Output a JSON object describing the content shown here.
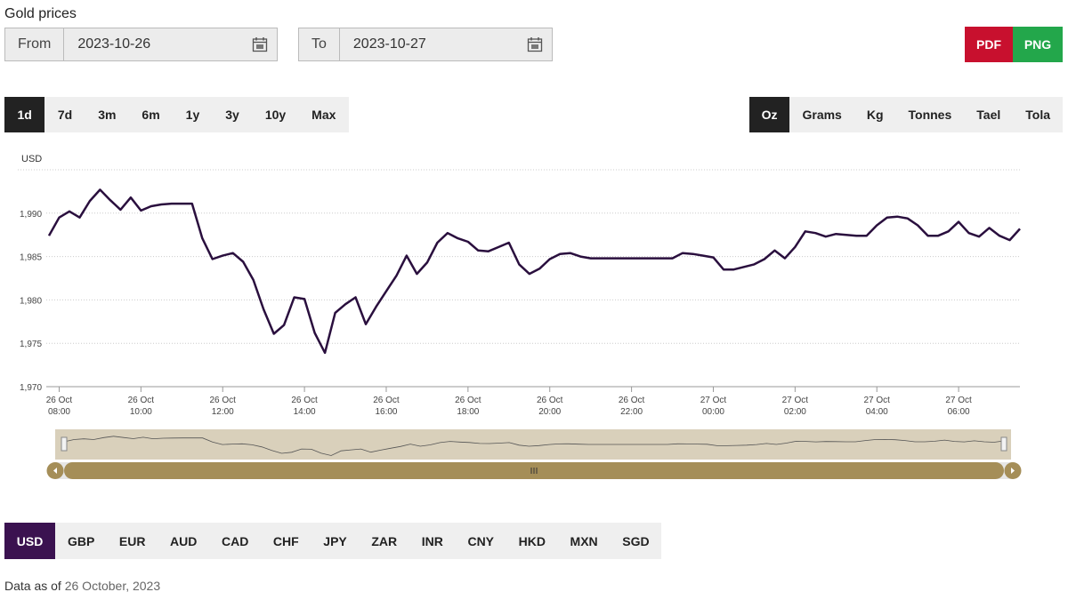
{
  "header": {
    "title": "Gold prices"
  },
  "date_range": {
    "from": {
      "label": "From",
      "value": "2023-10-26"
    },
    "to": {
      "label": "To",
      "value": "2023-10-27"
    }
  },
  "export": [
    "PDF",
    "PNG"
  ],
  "periods": {
    "options": [
      "1d",
      "7d",
      "3m",
      "6m",
      "1y",
      "3y",
      "10y",
      "Max"
    ],
    "selected": "1d"
  },
  "units": {
    "options": [
      "Oz",
      "Grams",
      "Kg",
      "Tonnes",
      "Tael",
      "Tola"
    ],
    "selected": "Oz"
  },
  "chart_data": {
    "type": "line",
    "y_axis_label": "USD",
    "color": "#2a0f3e",
    "x": [
      "26 Oct 07:45",
      "26 Oct 08:00",
      "26 Oct 08:15",
      "26 Oct 08:30",
      "26 Oct 08:45",
      "26 Oct 09:00",
      "26 Oct 09:15",
      "26 Oct 09:30",
      "26 Oct 09:45",
      "26 Oct 10:00",
      "26 Oct 10:15",
      "26 Oct 10:30",
      "26 Oct 10:45",
      "26 Oct 11:00",
      "26 Oct 11:15",
      "26 Oct 11:30",
      "26 Oct 11:45",
      "26 Oct 12:00",
      "26 Oct 12:15",
      "26 Oct 12:30",
      "26 Oct 12:45",
      "26 Oct 13:00",
      "26 Oct 13:15",
      "26 Oct 13:30",
      "26 Oct 13:45",
      "26 Oct 14:00",
      "26 Oct 14:15",
      "26 Oct 14:30",
      "26 Oct 14:45",
      "26 Oct 15:00",
      "26 Oct 15:15",
      "26 Oct 15:30",
      "26 Oct 15:45",
      "26 Oct 16:00",
      "26 Oct 16:15",
      "26 Oct 16:30",
      "26 Oct 16:45",
      "26 Oct 17:00",
      "26 Oct 17:15",
      "26 Oct 17:30",
      "26 Oct 17:45",
      "26 Oct 18:00",
      "26 Oct 18:15",
      "26 Oct 18:30",
      "26 Oct 18:45",
      "26 Oct 19:00",
      "26 Oct 19:15",
      "26 Oct 19:30",
      "26 Oct 19:45",
      "26 Oct 20:00",
      "26 Oct 20:15",
      "26 Oct 20:30",
      "26 Oct 20:45",
      "26 Oct 21:00",
      "26 Oct 21:15",
      "26 Oct 21:30",
      "26 Oct 21:45",
      "26 Oct 22:00",
      "26 Oct 22:15",
      "26 Oct 22:30",
      "26 Oct 22:45",
      "26 Oct 23:00",
      "26 Oct 23:15",
      "26 Oct 23:30",
      "26 Oct 23:45",
      "27 Oct 00:00",
      "27 Oct 00:15",
      "27 Oct 00:30",
      "27 Oct 00:45",
      "27 Oct 01:00",
      "27 Oct 01:15",
      "27 Oct 01:30",
      "27 Oct 01:45",
      "27 Oct 02:00",
      "27 Oct 02:15",
      "27 Oct 02:30",
      "27 Oct 02:45",
      "27 Oct 03:00",
      "27 Oct 03:15",
      "27 Oct 03:30",
      "27 Oct 03:45",
      "27 Oct 04:00",
      "27 Oct 04:15",
      "27 Oct 04:30",
      "27 Oct 04:45",
      "27 Oct 05:00",
      "27 Oct 05:15",
      "27 Oct 05:30",
      "27 Oct 05:45",
      "27 Oct 06:00",
      "27 Oct 06:15",
      "27 Oct 06:30",
      "27 Oct 06:45",
      "27 Oct 07:00",
      "27 Oct 07:15",
      "27 Oct 07:30"
    ],
    "values": [
      1987.4,
      1989.5,
      1990.2,
      1989.5,
      1991.4,
      1992.7,
      1991.5,
      1990.4,
      1991.8,
      1990.3,
      1990.8,
      1991.0,
      1991.1,
      1991.1,
      1991.1,
      1987.1,
      1984.7,
      1985.1,
      1985.4,
      1984.4,
      1982.3,
      1978.9,
      1976.1,
      1977.1,
      1980.3,
      1980.1,
      1976.2,
      1973.9,
      1978.5,
      1979.5,
      1980.3,
      1977.2,
      1979.2,
      1981.0,
      1982.8,
      1985.1,
      1983.0,
      1984.3,
      1986.6,
      1987.7,
      1987.1,
      1986.7,
      1985.7,
      1985.6,
      1986.1,
      1986.6,
      1984.1,
      1983.0,
      1983.6,
      1984.7,
      1985.3,
      1985.4,
      1985.0,
      1984.8,
      1984.8,
      1984.8,
      1984.8,
      1984.8,
      1984.8,
      1984.8,
      1984.8,
      1984.8,
      1985.4,
      1985.3,
      1985.1,
      1984.9,
      1983.5,
      1983.5,
      1983.8,
      1984.1,
      1984.7,
      1985.7,
      1984.8,
      1986.1,
      1987.9,
      1987.7,
      1987.3,
      1987.6,
      1987.5,
      1987.4,
      1987.4,
      1988.6,
      1989.5,
      1989.6,
      1989.4,
      1988.6,
      1987.4,
      1987.4,
      1987.9,
      1989.0,
      1987.7,
      1987.3,
      1988.3,
      1987.4,
      1986.9,
      1988.2
    ],
    "xlim": [
      "26 Oct 07:45",
      "27 Oct 07:30"
    ],
    "xticks": [
      {
        "value": "26 Oct 08:00",
        "label": [
          "26 Oct",
          "08:00"
        ]
      },
      {
        "value": "26 Oct 10:00",
        "label": [
          "26 Oct",
          "10:00"
        ]
      },
      {
        "value": "26 Oct 12:00",
        "label": [
          "26 Oct",
          "12:00"
        ]
      },
      {
        "value": "26 Oct 14:00",
        "label": [
          "26 Oct",
          "14:00"
        ]
      },
      {
        "value": "26 Oct 16:00",
        "label": [
          "26 Oct",
          "16:00"
        ]
      },
      {
        "value": "26 Oct 18:00",
        "label": [
          "26 Oct",
          "18:00"
        ]
      },
      {
        "value": "26 Oct 20:00",
        "label": [
          "26 Oct",
          "20:00"
        ]
      },
      {
        "value": "26 Oct 22:00",
        "label": [
          "26 Oct",
          "22:00"
        ]
      },
      {
        "value": "27 Oct 00:00",
        "label": [
          "27 Oct",
          "00:00"
        ]
      },
      {
        "value": "27 Oct 02:00",
        "label": [
          "27 Oct",
          "02:00"
        ]
      },
      {
        "value": "27 Oct 04:00",
        "label": [
          "27 Oct",
          "04:00"
        ]
      },
      {
        "value": "27 Oct 06:00",
        "label": [
          "27 Oct",
          "06:00"
        ]
      }
    ],
    "ylim": [
      1970,
      1995
    ],
    "yticks": [
      {
        "value": 1970,
        "label": "1,970"
      },
      {
        "value": 1975,
        "label": "1,975"
      },
      {
        "value": 1980,
        "label": "1,980"
      },
      {
        "value": 1985,
        "label": "1,985"
      },
      {
        "value": 1990,
        "label": "1,990"
      }
    ],
    "grid": true
  },
  "currencies": {
    "options": [
      "USD",
      "GBP",
      "EUR",
      "AUD",
      "CAD",
      "CHF",
      "JPY",
      "ZAR",
      "INR",
      "CNY",
      "HKD",
      "MXN",
      "SGD"
    ],
    "selected": "USD"
  },
  "footer": {
    "label": "Data as of",
    "date": "26 October, 2023"
  }
}
